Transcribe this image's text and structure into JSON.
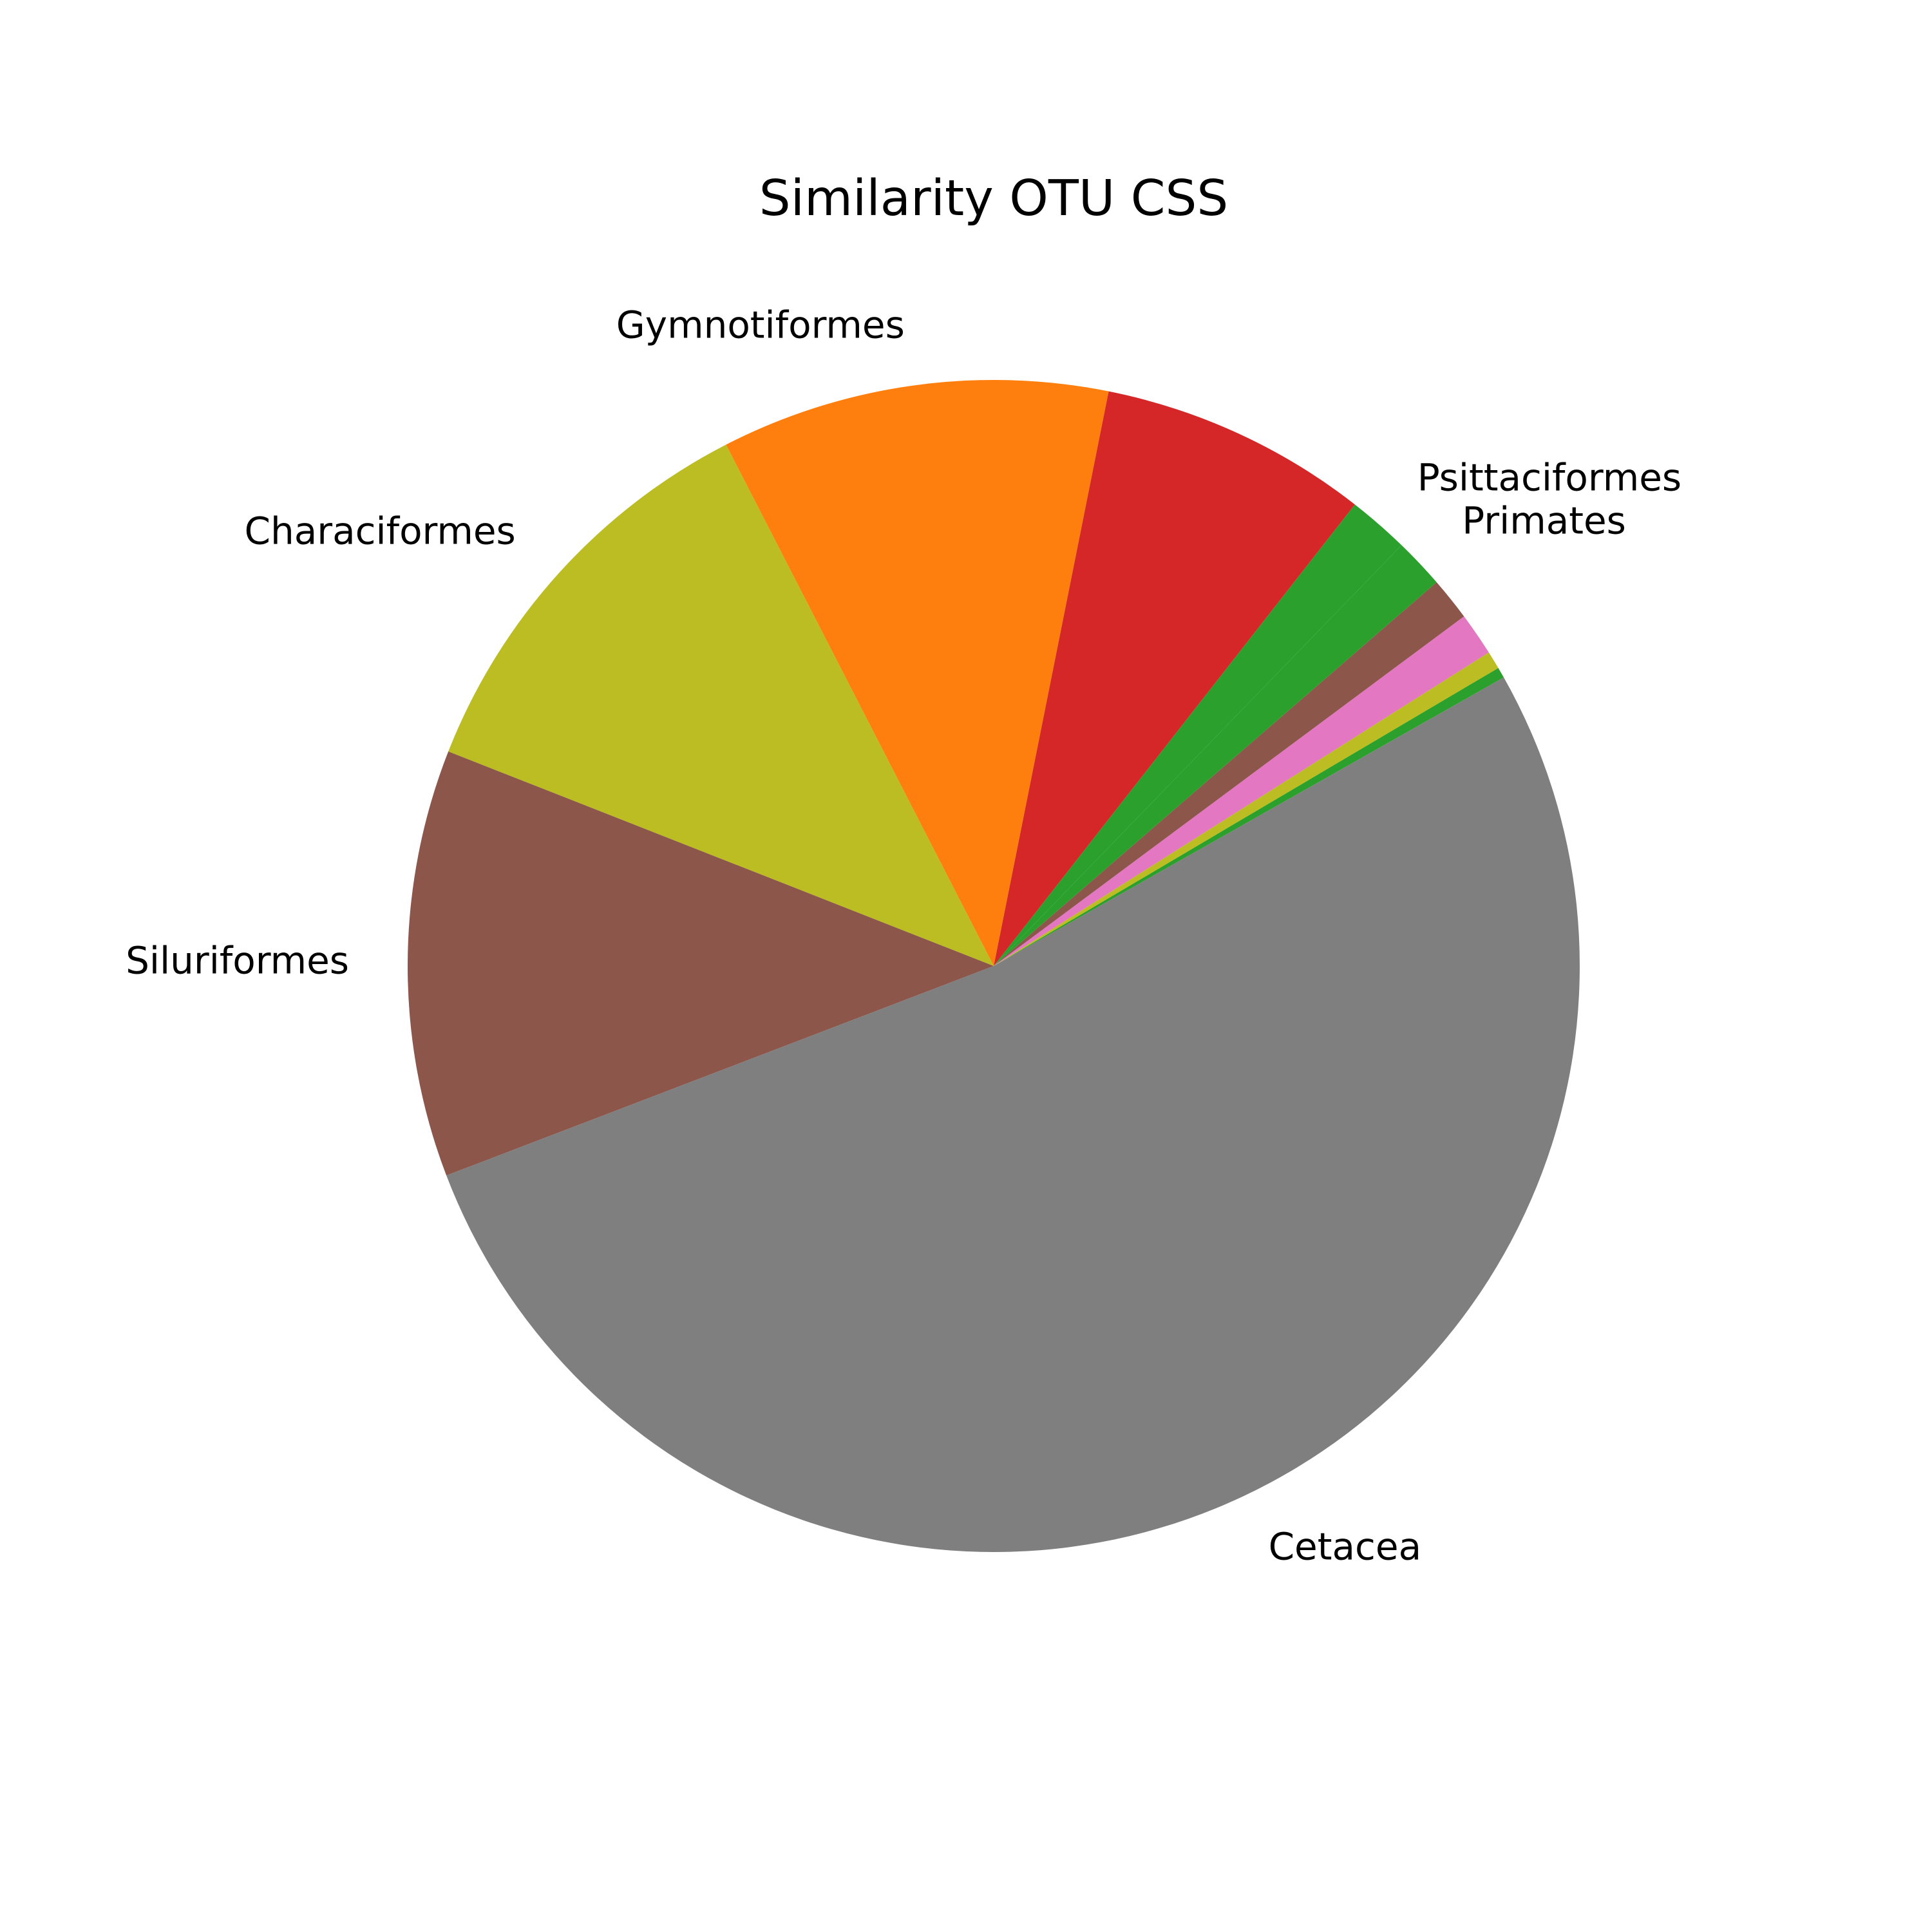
{
  "chart_data": {
    "type": "pie",
    "title": "Similarity OTU CSS",
    "start_angle_deg": 29.5,
    "direction": "counterclockwise",
    "slices": [
      {
        "label": "",
        "value": 0.3,
        "color": "#2ca02c"
      },
      {
        "label": "",
        "value": 0.5,
        "color": "#bcbd22"
      },
      {
        "label": "",
        "value": 1.2,
        "color": "#e377c2"
      },
      {
        "label": "",
        "value": 1.2,
        "color": "#8c564b"
      },
      {
        "label": "Primates",
        "value": 1.4,
        "color": "#2ca02c"
      },
      {
        "label": "Psittaciformes",
        "value": 1.7,
        "color": "#2ca02c"
      },
      {
        "label": "",
        "value": 7.5,
        "color": "#d62728"
      },
      {
        "label": "Gymnotiformes",
        "value": 10.8,
        "color": "#ff7f0e"
      },
      {
        "label": "Characiformes",
        "value": 11.6,
        "color": "#bcbd22"
      },
      {
        "label": "Siluriformes",
        "value": 11.9,
        "color": "#8c564b"
      },
      {
        "label": "Cetacea",
        "value": 52.9,
        "color": "#7f7f7f"
      }
    ]
  }
}
